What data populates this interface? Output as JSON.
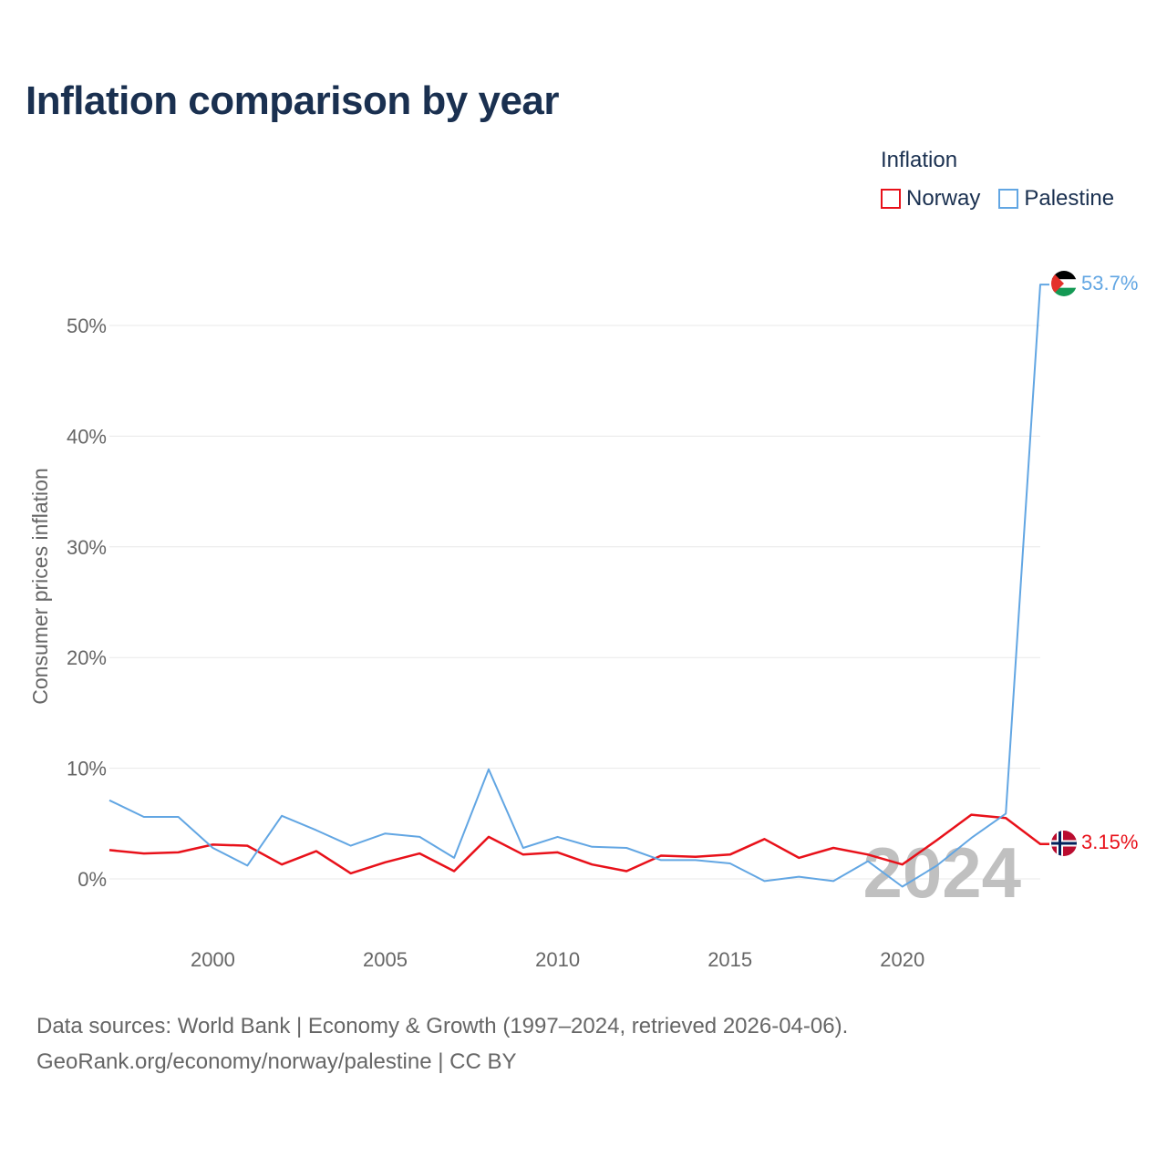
{
  "title": "Inflation comparison by year",
  "legend": {
    "title": "Inflation",
    "items": [
      {
        "label": "Norway",
        "color": "#e8111a"
      },
      {
        "label": "Palestine",
        "color": "#62a6e3"
      }
    ]
  },
  "chart_data": {
    "type": "line",
    "ylabel": "Consumer prices inflation",
    "xlabel": "",
    "ylim": [
      -4.5,
      56
    ],
    "xlim": [
      1997,
      2024
    ],
    "yticks": [
      0,
      10,
      20,
      30,
      40,
      50
    ],
    "ytick_labels": [
      "0%",
      "10%",
      "20%",
      "30%",
      "40%",
      "50%"
    ],
    "xticks": [
      2000,
      2005,
      2010,
      2015,
      2020
    ],
    "xtick_labels": [
      "2000",
      "2005",
      "2010",
      "2015",
      "2020"
    ],
    "grid": true,
    "year_watermark": "2024",
    "x": [
      1997,
      1998,
      1999,
      2000,
      2001,
      2002,
      2003,
      2004,
      2005,
      2006,
      2007,
      2008,
      2009,
      2010,
      2011,
      2012,
      2013,
      2014,
      2015,
      2016,
      2017,
      2018,
      2019,
      2020,
      2021,
      2022,
      2023,
      2024
    ],
    "series": [
      {
        "name": "Norway",
        "color": "#e8111a",
        "end_label": "3.15%",
        "values": [
          2.6,
          2.3,
          2.4,
          3.1,
          3.0,
          1.3,
          2.5,
          0.5,
          1.5,
          2.3,
          0.7,
          3.8,
          2.2,
          2.4,
          1.3,
          0.7,
          2.1,
          2.0,
          2.2,
          3.6,
          1.9,
          2.8,
          2.2,
          1.3,
          3.5,
          5.8,
          5.5,
          3.15
        ]
      },
      {
        "name": "Palestine",
        "color": "#62a6e3",
        "end_label": "53.7%",
        "values": [
          7.1,
          5.6,
          5.6,
          2.8,
          1.2,
          5.7,
          4.4,
          3.0,
          4.1,
          3.8,
          1.9,
          9.9,
          2.8,
          3.8,
          2.9,
          2.8,
          1.7,
          1.7,
          1.4,
          -0.2,
          0.2,
          -0.2,
          1.6,
          -0.7,
          1.2,
          3.7,
          5.9,
          53.7
        ]
      }
    ]
  },
  "footer": {
    "line1": "Data sources: World Bank | Economy & Growth (1997–2024, retrieved 2026-04-06).",
    "line2": "GeoRank.org/economy/norway/palestine | CC BY"
  }
}
